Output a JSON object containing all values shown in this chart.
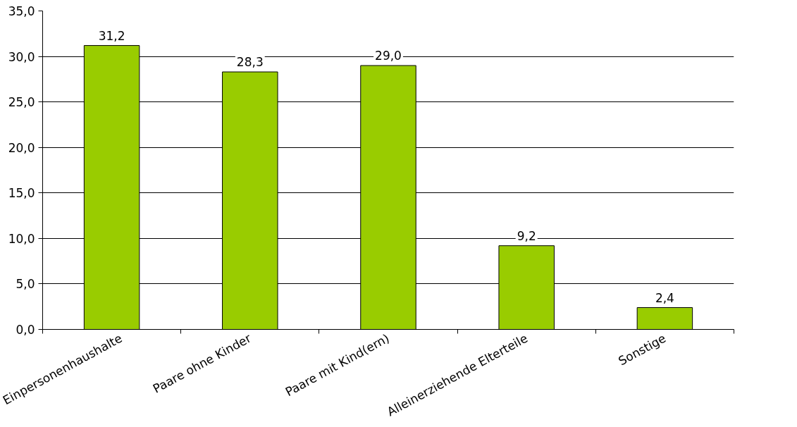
{
  "chart_data": {
    "type": "bar",
    "categories": [
      "Einpersonenhaushalte",
      "Paare ohne Kinder",
      "Paare mit Kind(ern)",
      "Alleinerziehende Elterteile",
      "Sonstige"
    ],
    "values": [
      31.2,
      28.3,
      29.0,
      9.2,
      2.4
    ],
    "value_labels": [
      "31,2",
      "28,3",
      "29,0",
      "9,2",
      "2,4"
    ],
    "color": "#99cc00",
    "ylim": [
      0,
      35
    ],
    "yticks": [
      {
        "value": 0,
        "label": "0,0"
      },
      {
        "value": 5,
        "label": "5,0"
      },
      {
        "value": 10,
        "label": "10,0"
      },
      {
        "value": 15,
        "label": "15,0"
      },
      {
        "value": 20,
        "label": "20,0"
      },
      {
        "value": 25,
        "label": "25,0"
      },
      {
        "value": 30,
        "label": "30,0"
      },
      {
        "value": 35,
        "label": "35,0"
      }
    ],
    "grid": "y"
  }
}
